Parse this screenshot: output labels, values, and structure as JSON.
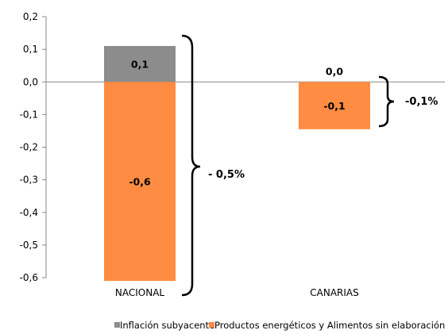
{
  "chart_data": {
    "type": "bar",
    "stacked": true,
    "categories": [
      "NACIONAL",
      "CANARIAS"
    ],
    "series": [
      {
        "name": "Inflación subyacente",
        "values": [
          0.11,
          0.0
        ],
        "labels": [
          "0,1",
          "0,0"
        ],
        "color": "#8c8c8c"
      },
      {
        "name": "Productos energéticos y Alimentos sin elaboración",
        "values": [
          -0.61,
          -0.145
        ],
        "labels": [
          "-0,6",
          "-0,1"
        ],
        "color": "#ff8c42"
      }
    ],
    "ylim": [
      -0.6,
      0.2
    ],
    "yticks": [
      0.2,
      0.1,
      0.0,
      -0.1,
      -0.2,
      -0.3,
      -0.4,
      -0.5,
      -0.6
    ],
    "ytick_labels": [
      "0,2",
      "0,1",
      "0,0",
      "-0,1",
      "-0,2",
      "-0,3",
      "-0,4",
      "-0,5",
      "-0,6"
    ],
    "annotations": [
      "- 0,5%",
      "-0,1%"
    ],
    "legend_position": "bottom",
    "grid": false
  }
}
